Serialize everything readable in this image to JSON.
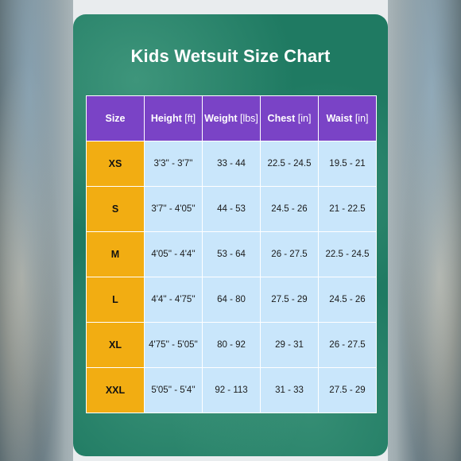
{
  "title": "Kids Wetsuit Size Chart",
  "headers": [
    {
      "main": "Size",
      "unit": ""
    },
    {
      "main": "Height",
      "unit": "[ft]"
    },
    {
      "main": "Weight",
      "unit": "[lbs]"
    },
    {
      "main": "Chest",
      "unit": "[in]"
    },
    {
      "main": "Waist",
      "unit": "[in]"
    }
  ],
  "rows": [
    {
      "size": "XS",
      "height": "3'3'' - 3'7''",
      "weight": "33 - 44",
      "chest": "22.5 - 24.5",
      "waist": "19.5 - 21"
    },
    {
      "size": "S",
      "height": "3'7'' - 4'05''",
      "weight": "44 - 53",
      "chest": "24.5 - 26",
      "waist": "21 - 22.5"
    },
    {
      "size": "M",
      "height": "4'05'' - 4'4''",
      "weight": "53 - 64",
      "chest": "26 - 27.5",
      "waist": "22.5 - 24.5"
    },
    {
      "size": "L",
      "height": "4'4'' - 4'75''",
      "weight": "64 - 80",
      "chest": "27.5 - 29",
      "waist": "24.5 - 26"
    },
    {
      "size": "XL",
      "height": "4'75'' - 5'05''",
      "weight": "80 - 92",
      "chest": "29 - 31",
      "waist": "26 - 27.5"
    },
    {
      "size": "XXL",
      "height": "5'05'' - 5'4''",
      "weight": "92 - 113",
      "chest": "31 - 33",
      "waist": "27.5 - 29"
    }
  ],
  "colors": {
    "card_background": "#1f7a62",
    "header_background": "#7a43c6",
    "size_column": "#f2ad12",
    "cell_background": "#c9e6fb"
  }
}
